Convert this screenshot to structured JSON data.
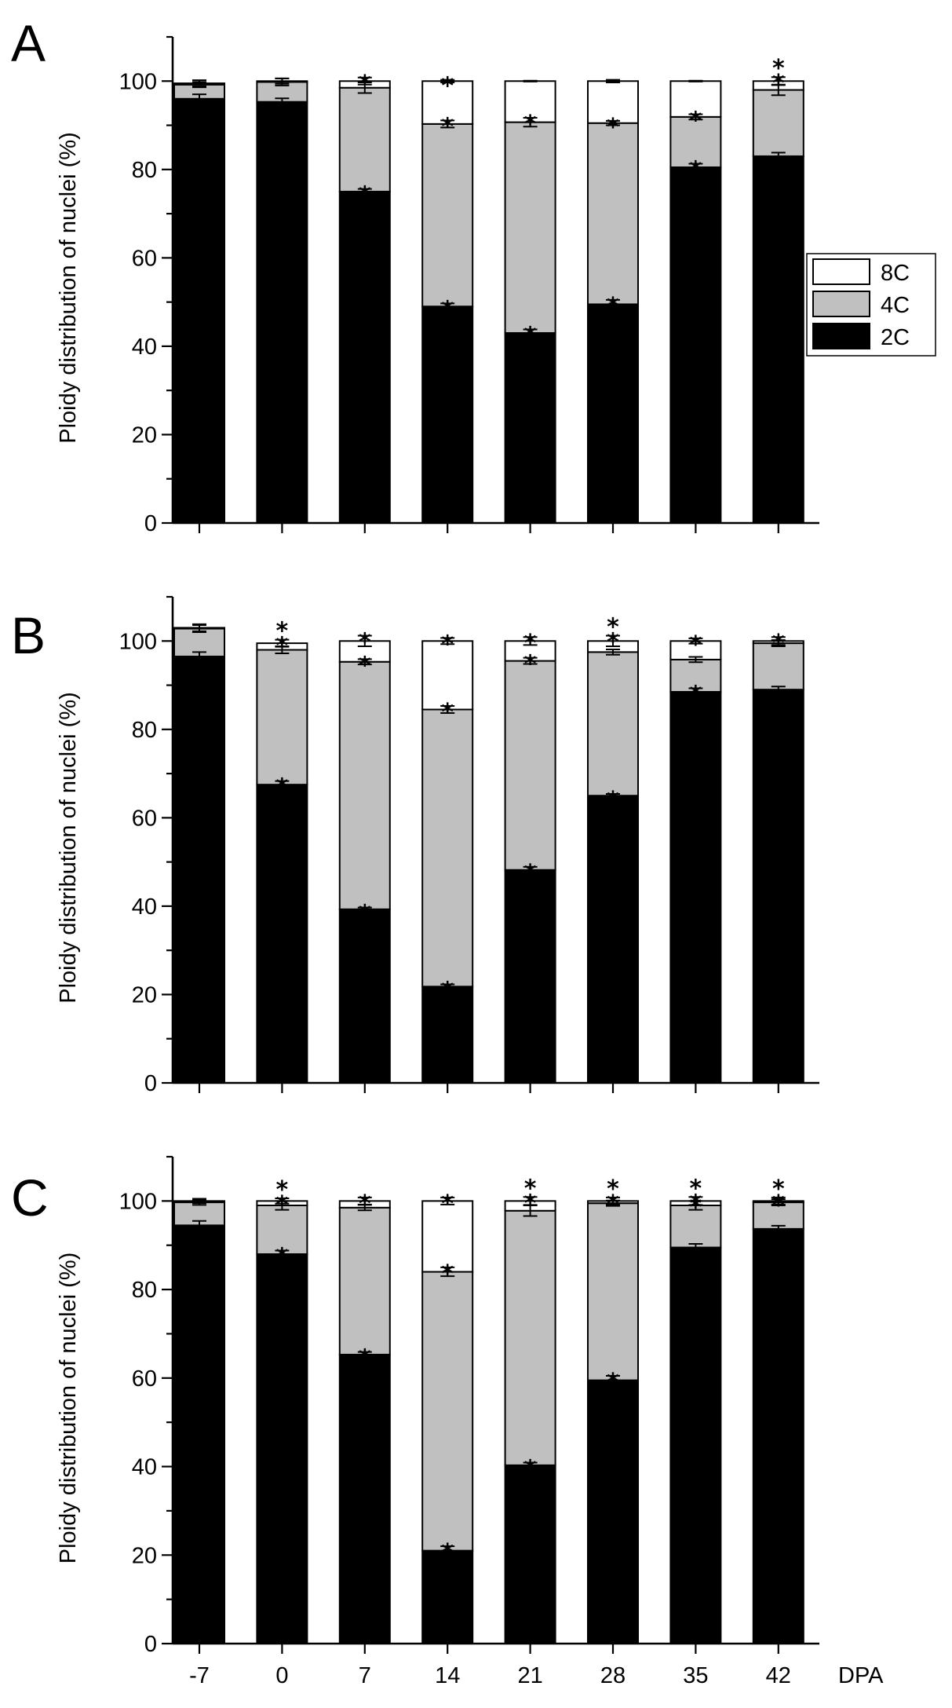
{
  "chart_data": [
    {
      "type": "bar",
      "stacked": true,
      "panel_label": "A",
      "ylabel": "Ploidy distribution of nuclei (%)",
      "ylim": [
        0,
        110
      ],
      "yticks": [
        "0",
        "20",
        "40",
        "60",
        "80",
        "100"
      ],
      "categories": [
        "-7",
        "0",
        "7",
        "14",
        "21",
        "28",
        "35",
        "42"
      ],
      "legend": [
        "8C",
        "4C",
        "2C"
      ],
      "series": [
        {
          "name": "2C",
          "color": "#000000",
          "values": [
            96,
            95.3,
            75,
            49,
            43,
            49.5,
            80.5,
            83
          ],
          "errors": [
            1,
            0.8,
            0.6,
            0.7,
            0.8,
            1,
            0.8,
            0.8
          ]
        },
        {
          "name": "4C",
          "color": "#c0c0c0",
          "values": [
            3.2,
            4.5,
            23.5,
            41.3,
            47.7,
            41,
            11.4,
            15
          ],
          "errors": [
            0.6,
            0.8,
            1.2,
            0.8,
            1,
            0.5,
            0.6,
            1.2
          ]
        },
        {
          "name": "8C",
          "color": "#ffffff",
          "values": [
            0.3,
            0.2,
            1.5,
            9.7,
            9.3,
            9.5,
            8.1,
            2
          ],
          "errors": [
            0.7,
            0.6,
            0.8,
            0.3,
            0.1,
            0.3,
            0.1,
            0.9
          ]
        }
      ],
      "annotations": [
        {
          "category": "7",
          "series": "2C",
          "marks": "*"
        },
        {
          "category": "7",
          "series": "8C",
          "marks": "*"
        },
        {
          "category": "14",
          "series": "2C",
          "marks": "*"
        },
        {
          "category": "14",
          "series": "4C",
          "marks": "*"
        },
        {
          "category": "14",
          "series": "8C",
          "marks": "*"
        },
        {
          "category": "21",
          "series": "2C",
          "marks": "*"
        },
        {
          "category": "21",
          "series": "4C",
          "marks": "*"
        },
        {
          "category": "28",
          "series": "2C",
          "marks": "*"
        },
        {
          "category": "28",
          "series": "4C",
          "marks": "*"
        },
        {
          "category": "35",
          "series": "2C",
          "marks": "*"
        },
        {
          "category": "35",
          "series": "4C",
          "marks": "*"
        },
        {
          "category": "42",
          "series": "8C",
          "marks": "**"
        }
      ]
    },
    {
      "type": "bar",
      "stacked": true,
      "panel_label": "B",
      "ylabel": "Ploidy distribution of nuclei (%)",
      "ylim": [
        0,
        110
      ],
      "yticks": [
        "0",
        "20",
        "40",
        "60",
        "80",
        "100"
      ],
      "categories": [
        "-7",
        "0",
        "7",
        "14",
        "21",
        "28",
        "35",
        "42"
      ],
      "series": [
        {
          "name": "2C",
          "color": "#000000",
          "values": [
            96.5,
            67.5,
            39.3,
            21.8,
            48.2,
            65,
            88.5,
            89
          ],
          "errors": [
            1,
            0.8,
            0.4,
            0.5,
            0.7,
            0.4,
            0.8,
            0.7
          ]
        },
        {
          "name": "4C",
          "color": "#c0c0c0",
          "values": [
            6.3,
            30.5,
            56,
            62.7,
            47.3,
            32.5,
            7.3,
            10.5
          ],
          "errors": [
            0.8,
            0.8,
            0.6,
            0.8,
            0.7,
            0.6,
            0.6,
            0.7
          ]
        },
        {
          "name": "8C",
          "color": "#ffffff",
          "values": [
            0.2,
            1.5,
            4.7,
            15.5,
            4.5,
            2.5,
            4.2,
            0.5
          ],
          "errors": [
            0.8,
            0.8,
            1.2,
            0.7,
            0.9,
            1.2,
            0.6,
            0.9
          ]
        }
      ],
      "annotations": [
        {
          "category": "0",
          "series": "2C",
          "marks": "*"
        },
        {
          "category": "0",
          "series": "8C",
          "marks": "**"
        },
        {
          "category": "7",
          "series": "2C",
          "marks": "*"
        },
        {
          "category": "7",
          "series": "4C",
          "marks": "*"
        },
        {
          "category": "7",
          "series": "8C",
          "marks": "*"
        },
        {
          "category": "14",
          "series": "2C",
          "marks": "*"
        },
        {
          "category": "14",
          "series": "4C",
          "marks": "*"
        },
        {
          "category": "14",
          "series": "8C",
          "marks": "*"
        },
        {
          "category": "21",
          "series": "2C",
          "marks": "*"
        },
        {
          "category": "21",
          "series": "4C",
          "marks": "*"
        },
        {
          "category": "21",
          "series": "8C",
          "marks": "*"
        },
        {
          "category": "28",
          "series": "2C",
          "marks": "*"
        },
        {
          "category": "28",
          "series": "8C",
          "marks": "**"
        },
        {
          "category": "35",
          "series": "2C",
          "marks": "*"
        },
        {
          "category": "35",
          "series": "8C",
          "marks": "*"
        },
        {
          "category": "42",
          "series": "8C",
          "marks": "*"
        }
      ]
    },
    {
      "type": "bar",
      "stacked": true,
      "panel_label": "C",
      "ylabel": "Ploidy distribution of nuclei (%)",
      "xlabel": "DPA",
      "ylim": [
        0,
        110
      ],
      "yticks": [
        "0",
        "20",
        "40",
        "60",
        "80",
        "100"
      ],
      "categories": [
        "-7",
        "0",
        "7",
        "14",
        "21",
        "28",
        "35",
        "42"
      ],
      "series": [
        {
          "name": "2C",
          "color": "#000000",
          "values": [
            94.5,
            88,
            65.3,
            21,
            40.3,
            59.5,
            89.5,
            93.7
          ],
          "errors": [
            1,
            0.8,
            0.6,
            1,
            0.6,
            1,
            0.8,
            0.7
          ]
        },
        {
          "name": "4C",
          "color": "#c0c0c0",
          "values": [
            5.2,
            11,
            33.2,
            63,
            57.5,
            40,
            9.5,
            6
          ],
          "errors": [
            0.6,
            1,
            0.6,
            1,
            1.2,
            0.6,
            1,
            0.7
          ]
        },
        {
          "name": "8C",
          "color": "#ffffff",
          "values": [
            0.3,
            1,
            1.5,
            16,
            2.2,
            0.5,
            1,
            0.3
          ],
          "errors": [
            0.5,
            0.6,
            0.8,
            0.8,
            0.9,
            0.8,
            0.9,
            0.8
          ]
        }
      ],
      "annotations": [
        {
          "category": "0",
          "series": "2C",
          "marks": "*"
        },
        {
          "category": "0",
          "series": "8C",
          "marks": "**"
        },
        {
          "category": "7",
          "series": "2C",
          "marks": "*"
        },
        {
          "category": "7",
          "series": "8C",
          "marks": "*"
        },
        {
          "category": "14",
          "series": "2C",
          "marks": "*"
        },
        {
          "category": "14",
          "series": "4C",
          "marks": "*"
        },
        {
          "category": "14",
          "series": "8C",
          "marks": "*"
        },
        {
          "category": "21",
          "series": "2C",
          "marks": "*"
        },
        {
          "category": "21",
          "series": "8C",
          "marks": "**"
        },
        {
          "category": "28",
          "series": "2C",
          "marks": "*"
        },
        {
          "category": "28",
          "series": "8C",
          "marks": "**"
        },
        {
          "category": "35",
          "series": "4C",
          "marks": "*"
        },
        {
          "category": "35",
          "series": "8C",
          "marks": "**"
        },
        {
          "category": "42",
          "series": "4C",
          "marks": "*"
        },
        {
          "category": "42",
          "series": "8C",
          "marks": "**"
        }
      ]
    }
  ]
}
